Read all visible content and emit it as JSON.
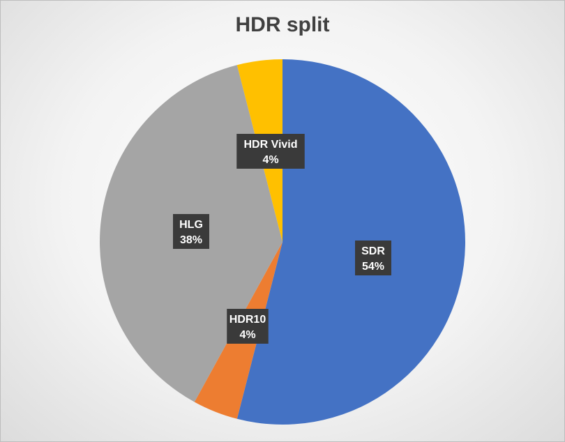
{
  "chart_data": {
    "type": "pie",
    "title": "HDR split",
    "slices": [
      {
        "name": "SDR",
        "value": 54,
        "label": "54%",
        "color": "#4472C4"
      },
      {
        "name": "HDR10",
        "value": 4,
        "label": "4%",
        "color": "#ED7D31"
      },
      {
        "name": "HLG",
        "value": 38,
        "label": "38%",
        "color": "#A5A5A5"
      },
      {
        "name": "HDR Vivid",
        "value": 4,
        "label": "4%",
        "color": "#FFC000"
      }
    ]
  }
}
